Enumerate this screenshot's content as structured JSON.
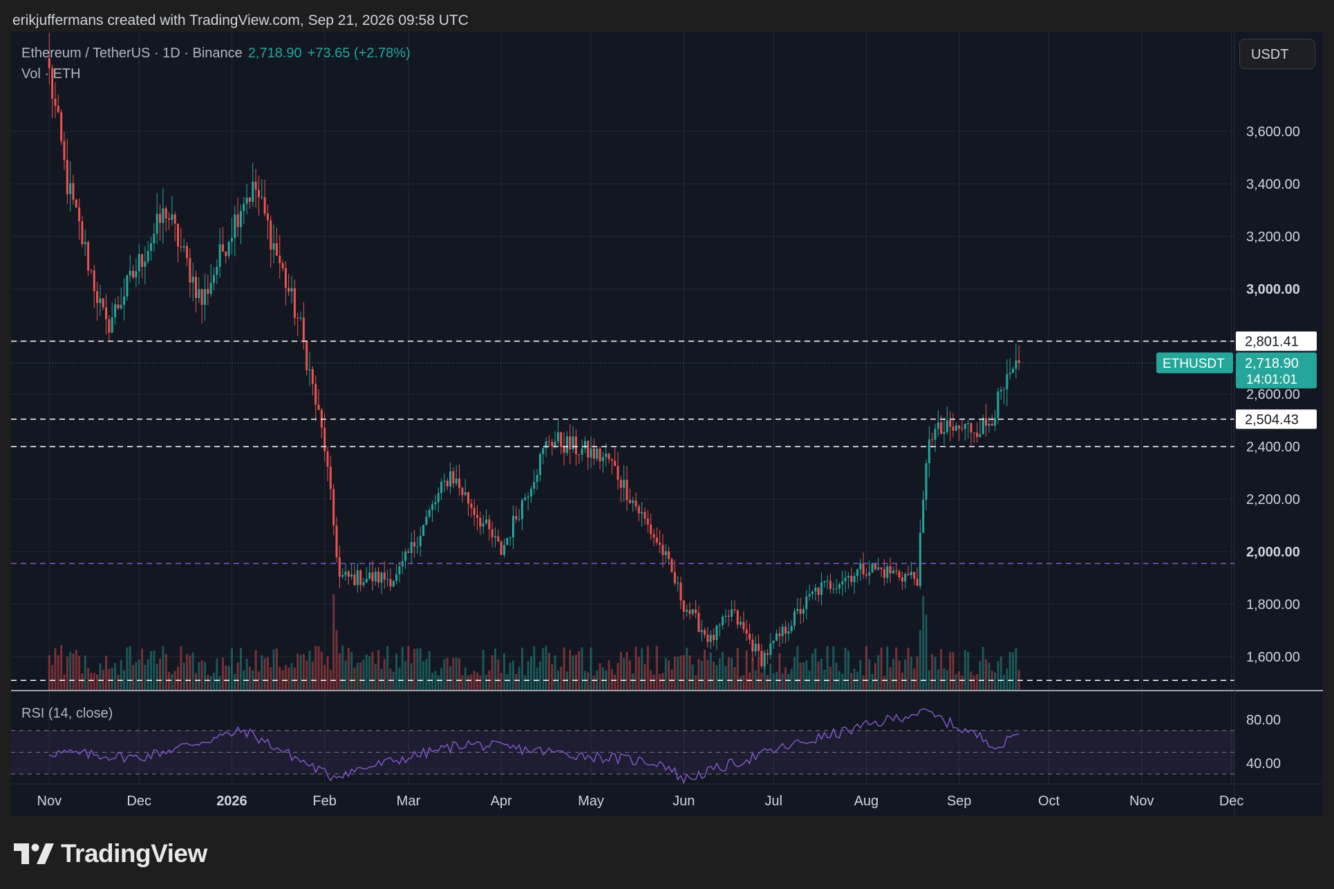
{
  "caption": "erikjuffermans created with TradingView.com, Sep 21, 2026 09:58 UTC",
  "legend": {
    "symbol": "Ethereum / TetherUS · 1D · Binance",
    "last": "2,718.90",
    "change": "+73.65 (+2.78%)",
    "volume": "Vol · ETH",
    "rsi": "RSI (14, close)"
  },
  "currency": "USDT",
  "brand": "TradingView",
  "colors": {
    "background": "#131722",
    "up": "#26a69a",
    "down": "#ef5350",
    "rsi": "#7e57c2",
    "grid": "#262a35",
    "axis_text": "#d1d4dc"
  },
  "chart_data": {
    "type": "candlestick",
    "symbol": "ETHUSDT",
    "interval": "1D",
    "exchange": "Binance",
    "price_axis": {
      "ticks": [
        "1,600.00",
        "1,800.00",
        "2,000.00",
        "2,200.00",
        "2,400.00",
        "2,600.00",
        "3,000.00",
        "3,200.00",
        "3,400.00",
        "3,600.00"
      ],
      "bold_ticks": [
        "2,000.00",
        "3,000.00"
      ]
    },
    "x_axis": {
      "labels": [
        "Nov",
        "Dec",
        "2026",
        "Feb",
        "Mar",
        "Apr",
        "May",
        "Jun",
        "Jul",
        "Aug",
        "Sep",
        "Oct",
        "Nov",
        "Dec"
      ],
      "bold_labels": [
        "2026"
      ]
    },
    "key_points": [
      {
        "date": "Nov 1",
        "close": 3820
      },
      {
        "date": "Nov 7",
        "close": 3400
      },
      {
        "date": "Nov 20",
        "close": 2850
      },
      {
        "date": "Dec 10",
        "close": 3300
      },
      {
        "date": "Dec 22",
        "close": 2950
      },
      {
        "date": "Jan 5",
        "close": 3350
      },
      {
        "date": "Jan 9",
        "close": 3380
      },
      {
        "date": "Jan 24",
        "close": 2850
      },
      {
        "date": "Feb 1",
        "close": 2400
      },
      {
        "date": "Feb 6",
        "close": 1900
      },
      {
        "date": "Feb 25",
        "close": 1900
      },
      {
        "date": "Mar 15",
        "close": 2300
      },
      {
        "date": "Apr 1",
        "close": 2000
      },
      {
        "date": "Apr 17",
        "close": 2430
      },
      {
        "date": "May 7",
        "close": 2350
      },
      {
        "date": "May 25",
        "close": 2000
      },
      {
        "date": "Jun 1",
        "close": 1800
      },
      {
        "date": "Jun 10",
        "close": 1660
      },
      {
        "date": "Jun 17",
        "close": 1770
      },
      {
        "date": "Jun 27",
        "close": 1590
      },
      {
        "date": "Jul 15",
        "close": 1850
      },
      {
        "date": "Aug 1",
        "close": 1940
      },
      {
        "date": "Aug 18",
        "close": 1900
      },
      {
        "date": "Aug 22",
        "close": 2450
      },
      {
        "date": "Sep 10",
        "close": 2480
      },
      {
        "date": "Sep 21",
        "close": 2718.9
      }
    ],
    "last_price": 2718.9,
    "countdown": "14:01:01",
    "price_label": "ETHUSDT",
    "horizontal_lines": [
      {
        "price": 2801.41,
        "label": "2,801.41",
        "color": "#ffffff",
        "style": "dashed"
      },
      {
        "price": 2504.43,
        "label": "2,504.43",
        "color": "#ffffff",
        "style": "dashed"
      },
      {
        "price": 2400,
        "color": "#ffffff",
        "style": "dashed"
      },
      {
        "price": 1955,
        "color": "#7e57c2",
        "style": "dashed"
      },
      {
        "price": 1510,
        "color": "#ffffff",
        "style": "dashed"
      }
    ],
    "rsi": {
      "ticks": [
        "80.00",
        "40.00"
      ],
      "band": [
        30,
        70
      ],
      "middle": 50,
      "key_points": [
        {
          "date": "Nov 1",
          "value": 50
        },
        {
          "date": "Dec 1",
          "value": 45
        },
        {
          "date": "Jan 5",
          "value": 70
        },
        {
          "date": "Feb 3",
          "value": 28
        },
        {
          "date": "Mar 20",
          "value": 58
        },
        {
          "date": "May 25",
          "value": 40
        },
        {
          "date": "Jun 1",
          "value": 25
        },
        {
          "date": "Jul 5",
          "value": 55
        },
        {
          "date": "Aug 20",
          "value": 88
        },
        {
          "date": "Sep 15",
          "value": 55
        },
        {
          "date": "Sep 21",
          "value": 70
        }
      ]
    }
  }
}
